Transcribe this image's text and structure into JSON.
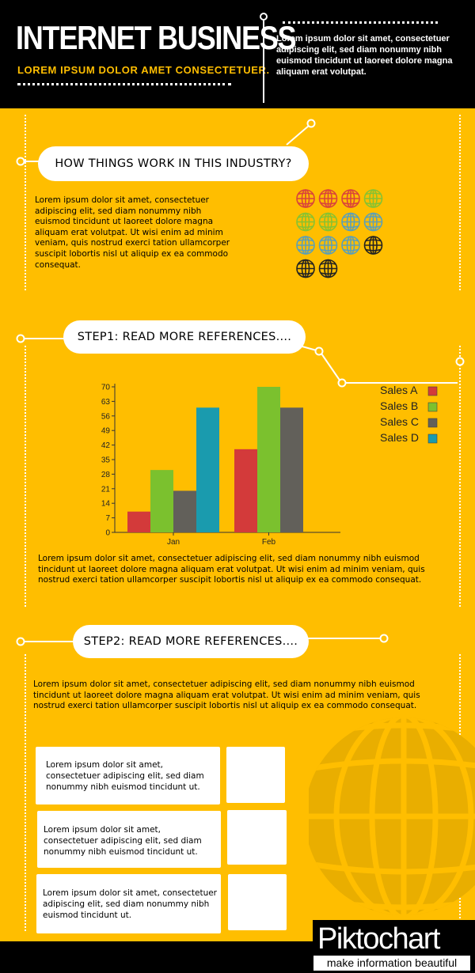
{
  "header": {
    "title": "INTERNET BUSINESS",
    "subtitle": "LOREM IPSUM DOLOR  AMET CONSECTETUER.",
    "description": "Lorem ipsum dolor sit amet, consectetuer adipiscing elit, sed diam nonummy nibh euismod tincidunt ut laoreet dolore magna aliquam erat volutpat."
  },
  "section1": {
    "heading": "HOW THINGS WORK IN THIS INDUSTRY?",
    "text": "Lorem ipsum dolor sit amet, consectetuer adipiscing elit, sed diam nonummy nibh euismod tincidunt ut laoreet dolore magna aliquam erat volutpat. Ut wisi enim ad minim veniam, quis nostrud exerci tation ullamcorper suscipit lobortis nisl ut aliquip ex ea commodo consequat.",
    "globe_icons": [
      [
        "#D9443B",
        "#D9443B",
        "#D9443B",
        "#86C232"
      ],
      [
        "#86C232",
        "#86C232",
        "#5B9FB8",
        "#5B9FB8"
      ],
      [
        "#5B9FB8",
        "#5B9FB8",
        "#5B9FB8",
        "#222222"
      ],
      [
        "#222222",
        "#222222"
      ]
    ]
  },
  "section2": {
    "heading": "STEP1: READ MORE REFERENCES....",
    "text": "Lorem ipsum dolor sit amet, consectetuer adipiscing elit, sed diam nonummy nibh euismod tincidunt ut laoreet dolore magna aliquam erat volutpat. Ut wisi enim ad minim veniam, quis nostrud exerci tation ullamcorper suscipit lobortis nisl ut aliquip ex ea commodo consequat."
  },
  "chart_data": {
    "type": "bar",
    "categories": [
      "Jan",
      "Feb"
    ],
    "series": [
      {
        "name": "Sales A",
        "values": [
          10,
          40
        ],
        "color": "#D33A3A"
      },
      {
        "name": "Sales B",
        "values": [
          30,
          70
        ],
        "color": "#7BC12E"
      },
      {
        "name": "Sales C",
        "values": [
          20,
          60
        ],
        "color": "#62605A"
      },
      {
        "name": "Sales D",
        "values": [
          60,
          0
        ],
        "color": "#1A9BAE"
      }
    ],
    "yticks": [
      "0",
      "7",
      "14",
      "21",
      "28",
      "35",
      "42",
      "49",
      "56",
      "63",
      "70"
    ],
    "ylim": [
      0,
      70
    ],
    "grid": false,
    "legend": "right"
  },
  "section3": {
    "heading": "STEP2: READ MORE REFERENCES....",
    "text": "Lorem ipsum dolor sit amet, consectetuer adipiscing elit, sed diam nonummy nibh euismod tincidunt ut laoreet dolore magna aliquam erat volutpat. Ut wisi enim ad minim veniam, quis nostrud exerci tation ullamcorper suscipit lobortis nisl ut aliquip ex ea commodo consequat.",
    "cards": [
      "Lorem ipsum dolor sit amet, consectetuer adipiscing elit, sed diam nonummy nibh euismod tincidunt ut.",
      "Lorem ipsum dolor sit amet, consectetuer adipiscing elit, sed diam nonummy nibh euismod tincidunt ut.",
      "Lorem ipsum dolor sit amet, consectetuer adipiscing elit, sed diam nonummy nibh euismod tincidunt ut."
    ]
  },
  "footer": {
    "logo_text": "Piktochart",
    "tagline": "make information beautiful"
  },
  "colors": {
    "background": "#FFBE00",
    "header": "#000000",
    "accent": "#FFFFFF"
  }
}
